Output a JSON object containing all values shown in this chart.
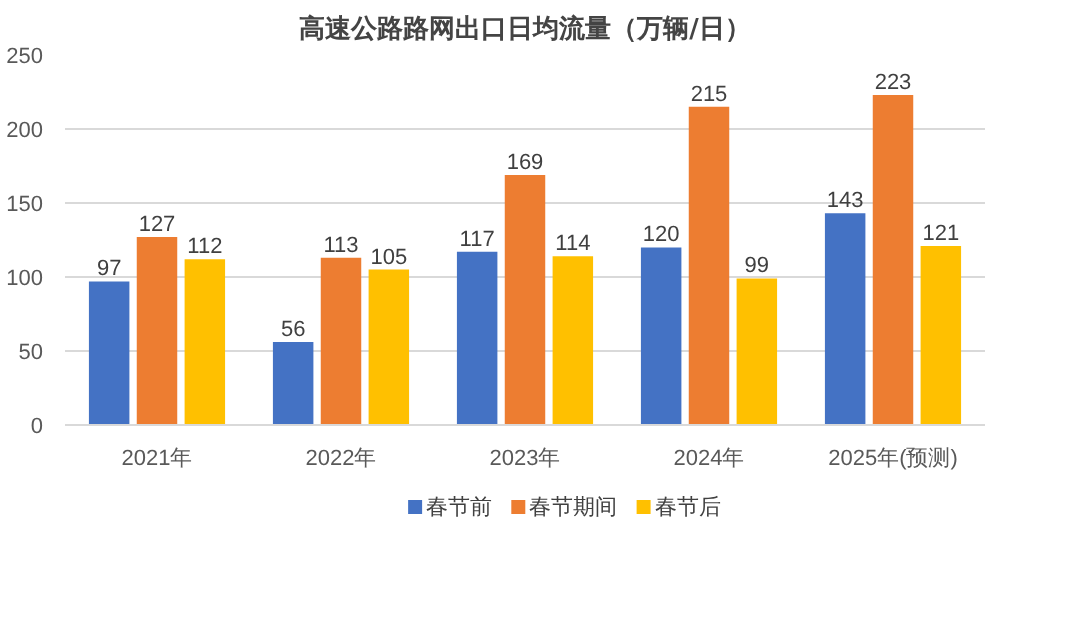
{
  "chart_data": {
    "type": "bar",
    "title": "高速公路路网出口日均流量（万辆/日）",
    "categories": [
      "2021年",
      "2022年",
      "2023年",
      "2024年",
      "2025年(预测)"
    ],
    "series": [
      {
        "name": "春节前",
        "color": "#4472c4",
        "values": [
          97,
          56,
          117,
          120,
          143
        ]
      },
      {
        "name": "春节期间",
        "color": "#ed7d31",
        "values": [
          127,
          113,
          169,
          215,
          223
        ]
      },
      {
        "name": "春节后",
        "color": "#ffc000",
        "values": [
          112,
          105,
          114,
          99,
          121
        ]
      }
    ],
    "ylim": [
      0,
      250
    ],
    "yticks": [
      0,
      50,
      100,
      150,
      200,
      250
    ],
    "grid": "y",
    "legend": "bottom",
    "data_labels": true
  }
}
